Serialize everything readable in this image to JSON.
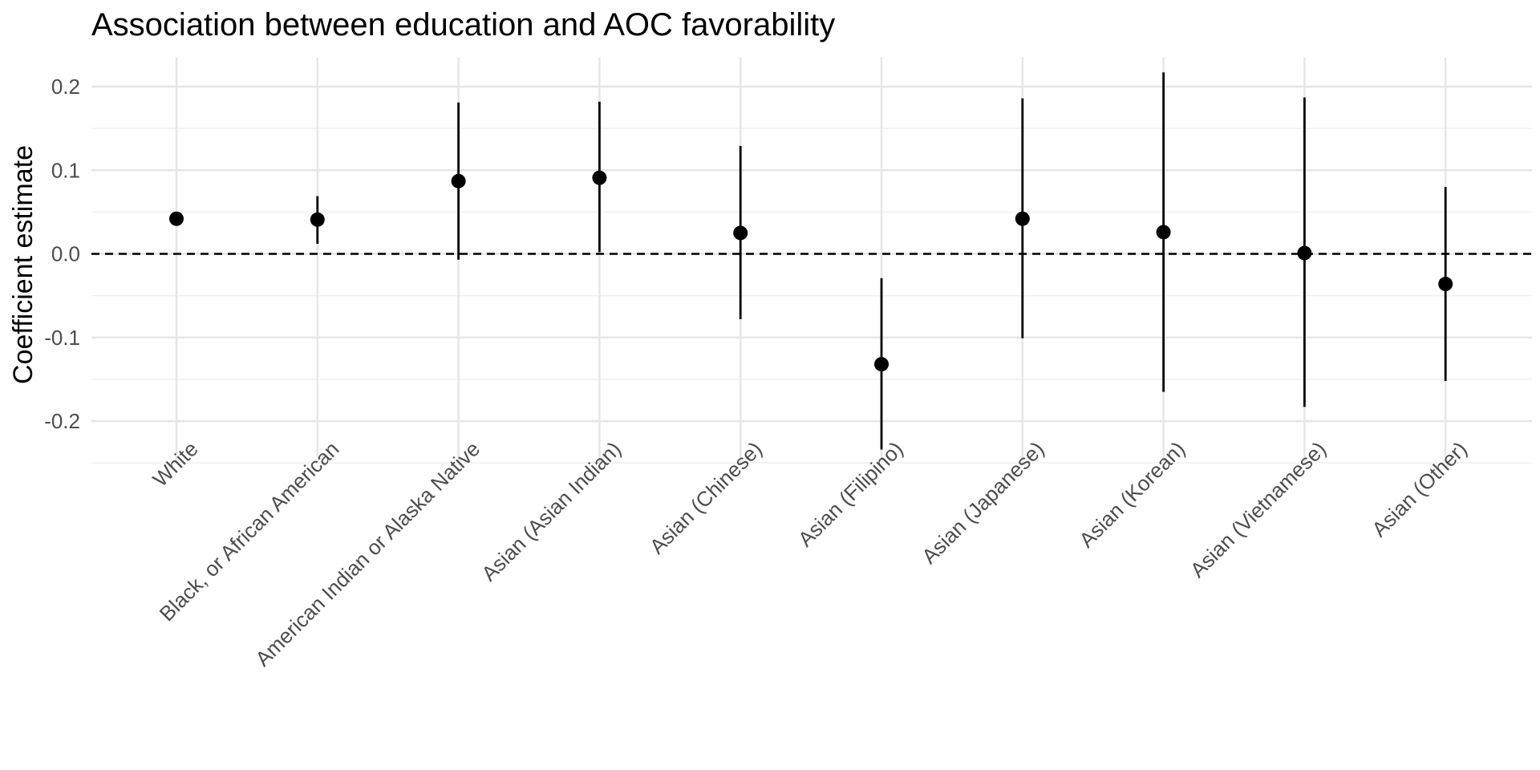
{
  "chart_data": {
    "type": "scatter",
    "subtype": "point-range",
    "title": "Association between education and AOC favorability",
    "xlabel": "",
    "ylabel": "Coefficient estimate",
    "ylim": [
      -0.25,
      0.235
    ],
    "yticks": [
      -0.2,
      -0.1,
      0.0,
      0.1,
      0.2
    ],
    "ytick_labels": [
      "-0.2",
      "-0.1",
      "0.0",
      "0.1",
      "0.2"
    ],
    "grid": true,
    "reference_line": {
      "y": 0,
      "style": "dashed"
    },
    "categories": [
      "White",
      "Black, or African American",
      "American Indian or Alaska Native",
      "Asian (Asian Indian)",
      "Asian (Chinese)",
      "Asian (Filipino)",
      "Asian (Japanese)",
      "Asian (Korean)",
      "Asian (Vietnamese)",
      "Asian (Other)"
    ],
    "estimate": [
      0.042,
      0.041,
      0.087,
      0.091,
      0.025,
      -0.132,
      0.042,
      0.026,
      0.001,
      -0.036
    ],
    "lower": [
      0.042,
      0.012,
      -0.007,
      0.002,
      -0.078,
      -0.234,
      -0.101,
      -0.165,
      -0.183,
      -0.152
    ],
    "upper": [
      0.042,
      0.069,
      0.181,
      0.182,
      0.129,
      -0.029,
      0.186,
      0.217,
      0.187,
      0.08
    ],
    "colors": {
      "point": "#000000",
      "errorbar": "#000000",
      "grid_major": "#e6e6e6",
      "grid_minor": "#f0f0f0",
      "reference_line": "#000000"
    }
  }
}
